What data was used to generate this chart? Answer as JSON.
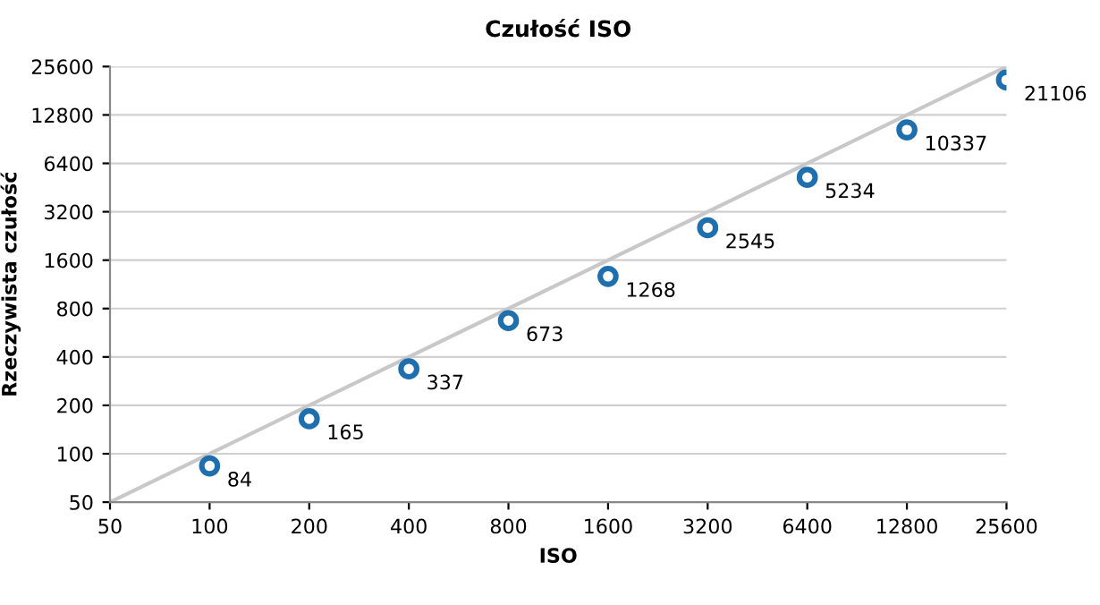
{
  "chart_data": {
    "type": "scatter",
    "title": "Czułość ISO",
    "xlabel": "ISO",
    "ylabel": "Rzeczywista czułość",
    "log": "xy",
    "xlim": [
      50,
      25600
    ],
    "ylim": [
      50,
      25600
    ],
    "xticks": [
      50,
      100,
      200,
      400,
      800,
      1600,
      3200,
      6400,
      12800,
      25600
    ],
    "yticks": [
      50,
      100,
      200,
      400,
      800,
      1600,
      3200,
      6400,
      12800,
      25600
    ],
    "grid": "y",
    "legend": false,
    "series": [
      {
        "type": "line",
        "color": "#c8c8c8",
        "marker": "none",
        "line_style": "solid",
        "x": [
          50,
          25600
        ],
        "values": [
          50,
          25600
        ]
      },
      {
        "color": "#1f6fae",
        "marker": "circle",
        "x": [
          100,
          200,
          400,
          800,
          1600,
          3200,
          6400,
          12800,
          25600
        ],
        "values": [
          84,
          165,
          337,
          673,
          1268,
          2545,
          5234,
          10337,
          21106
        ],
        "value_labels": [
          "84",
          "165",
          "337",
          "673",
          "1268",
          "2545",
          "5234",
          "10337",
          "21106"
        ]
      }
    ]
  }
}
